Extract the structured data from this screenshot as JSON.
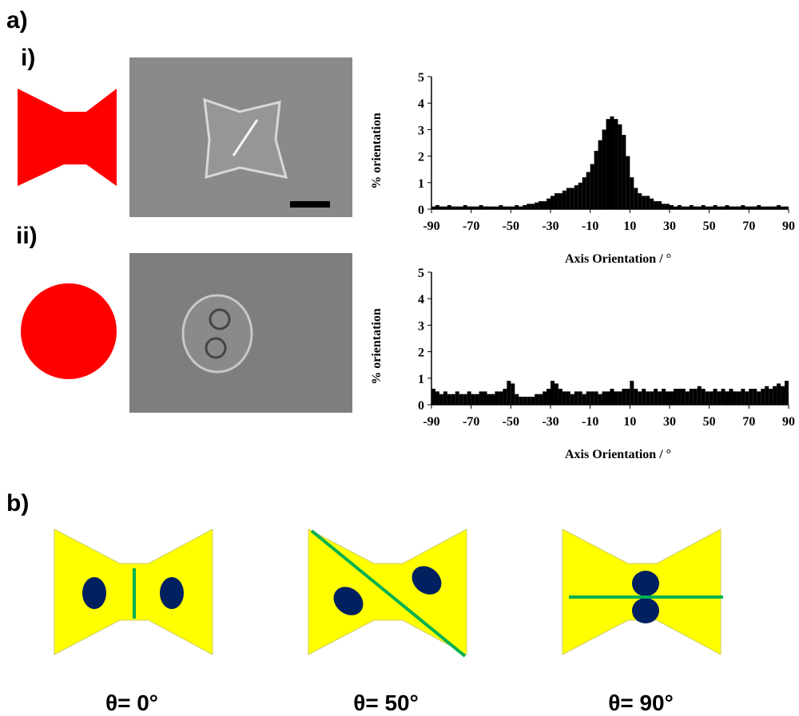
{
  "panel_labels": {
    "a": "a)",
    "i": "i)",
    "ii": "ii)",
    "b": "b)"
  },
  "angles": [
    "θ= 0°",
    "θ= 50°",
    "θ= 90°"
  ],
  "chart_data": [
    {
      "type": "histogram",
      "xlabel": "Axis Orientation  / °",
      "ylabel": "%  orientation",
      "color": "#000000",
      "xlim": [
        -90,
        90
      ],
      "ylim": [
        0,
        5
      ],
      "xticks": [
        -90,
        -70,
        -50,
        -30,
        -10,
        10,
        30,
        50,
        70,
        90
      ],
      "yticks": [
        0,
        1,
        2,
        3,
        4,
        5
      ],
      "bins": [
        -90,
        -88,
        -86,
        -84,
        -82,
        -80,
        -78,
        -76,
        -74,
        -72,
        -70,
        -68,
        -66,
        -64,
        -62,
        -60,
        -58,
        -56,
        -54,
        -52,
        -50,
        -48,
        -46,
        -44,
        -42,
        -40,
        -38,
        -36,
        -34,
        -32,
        -30,
        -28,
        -26,
        -24,
        -22,
        -20,
        -18,
        -16,
        -14,
        -12,
        -10,
        -8,
        -6,
        -4,
        -2,
        0,
        2,
        4,
        6,
        8,
        10,
        12,
        14,
        16,
        18,
        20,
        22,
        24,
        26,
        28,
        30,
        32,
        34,
        36,
        38,
        40,
        42,
        44,
        46,
        48,
        50,
        52,
        54,
        56,
        58,
        60,
        62,
        64,
        66,
        68,
        70,
        72,
        74,
        76,
        78,
        80,
        82,
        84,
        86,
        88,
        90
      ],
      "values": [
        0.1,
        0.15,
        0.1,
        0.1,
        0.15,
        0.1,
        0.1,
        0.1,
        0.15,
        0.1,
        0.1,
        0.1,
        0.15,
        0.1,
        0.1,
        0.1,
        0.1,
        0.15,
        0.1,
        0.1,
        0.1,
        0.15,
        0.1,
        0.15,
        0.2,
        0.2,
        0.25,
        0.3,
        0.3,
        0.4,
        0.5,
        0.6,
        0.6,
        0.7,
        0.8,
        0.8,
        0.9,
        1.0,
        1.2,
        1.4,
        1.7,
        2.2,
        2.6,
        3.0,
        3.4,
        3.5,
        3.4,
        3.2,
        2.8,
        2.0,
        1.2,
        0.8,
        0.6,
        0.5,
        0.5,
        0.4,
        0.3,
        0.3,
        0.2,
        0.2,
        0.15,
        0.1,
        0.15,
        0.1,
        0.1,
        0.15,
        0.1,
        0.1,
        0.15,
        0.1,
        0.1,
        0.15,
        0.1,
        0.1,
        0.15,
        0.1,
        0.1,
        0.1,
        0.15,
        0.1,
        0.1,
        0.1,
        0.15,
        0.1,
        0.1,
        0.1,
        0.1,
        0.15,
        0.1,
        0.1
      ]
    },
    {
      "type": "histogram",
      "xlabel": "Axis Orientation  / °",
      "ylabel": "%  orientation",
      "color": "#000000",
      "xlim": [
        -90,
        90
      ],
      "ylim": [
        0,
        5
      ],
      "xticks": [
        -90,
        -70,
        -50,
        -30,
        -10,
        10,
        30,
        50,
        70,
        90
      ],
      "yticks": [
        0,
        1,
        2,
        3,
        4,
        5
      ],
      "bins": [
        -90,
        -88,
        -86,
        -84,
        -82,
        -80,
        -78,
        -76,
        -74,
        -72,
        -70,
        -68,
        -66,
        -64,
        -62,
        -60,
        -58,
        -56,
        -54,
        -52,
        -50,
        -48,
        -46,
        -44,
        -42,
        -40,
        -38,
        -36,
        -34,
        -32,
        -30,
        -28,
        -26,
        -24,
        -22,
        -20,
        -18,
        -16,
        -14,
        -12,
        -10,
        -8,
        -6,
        -4,
        -2,
        0,
        2,
        4,
        6,
        8,
        10,
        12,
        14,
        16,
        18,
        20,
        22,
        24,
        26,
        28,
        30,
        32,
        34,
        36,
        38,
        40,
        42,
        44,
        46,
        48,
        50,
        52,
        54,
        56,
        58,
        60,
        62,
        64,
        66,
        68,
        70,
        72,
        74,
        76,
        78,
        80,
        82,
        84,
        86,
        88,
        90
      ],
      "values": [
        0.6,
        0.5,
        0.4,
        0.5,
        0.4,
        0.4,
        0.5,
        0.4,
        0.4,
        0.5,
        0.4,
        0.4,
        0.5,
        0.5,
        0.4,
        0.4,
        0.5,
        0.5,
        0.6,
        0.9,
        0.8,
        0.4,
        0.3,
        0.3,
        0.3,
        0.3,
        0.4,
        0.4,
        0.5,
        0.6,
        0.9,
        0.8,
        0.6,
        0.5,
        0.5,
        0.4,
        0.5,
        0.5,
        0.4,
        0.5,
        0.5,
        0.5,
        0.4,
        0.5,
        0.5,
        0.6,
        0.5,
        0.5,
        0.6,
        0.6,
        0.9,
        0.6,
        0.5,
        0.6,
        0.5,
        0.5,
        0.6,
        0.5,
        0.6,
        0.5,
        0.5,
        0.6,
        0.6,
        0.6,
        0.5,
        0.6,
        0.6,
        0.7,
        0.6,
        0.5,
        0.5,
        0.6,
        0.5,
        0.6,
        0.5,
        0.6,
        0.5,
        0.5,
        0.6,
        0.5,
        0.6,
        0.6,
        0.5,
        0.6,
        0.7,
        0.6,
        0.7,
        0.8,
        0.7,
        0.9
      ]
    }
  ]
}
